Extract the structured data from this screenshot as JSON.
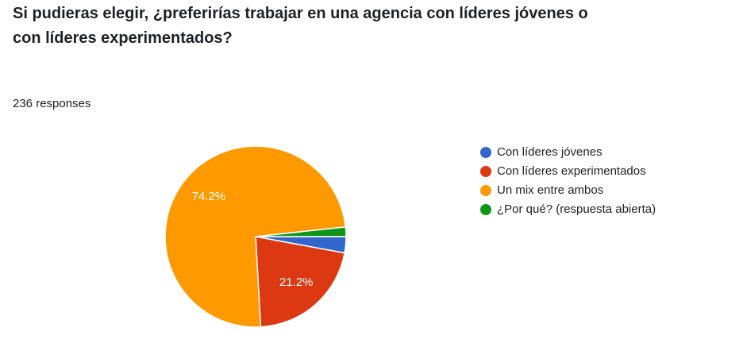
{
  "chart_data": {
    "type": "pie",
    "title": "Si pudieras elegir, ¿preferirías trabajar en una agencia con líderes jóvenes o con líderes experimentados?",
    "subtitle": "236 responses",
    "categories": [
      "Con líderes jóvenes",
      "Con líderes experimentados",
      "Un mix entre ambos",
      "¿Por qué? (respuesta abierta)"
    ],
    "values": [
      2.9,
      21.2,
      74.2,
      1.7
    ],
    "value_labels": [
      null,
      "21.2%",
      "74.2%",
      null
    ],
    "colors": [
      "#3366cc",
      "#dc3912",
      "#ff9900",
      "#109618"
    ],
    "legend": "right"
  }
}
